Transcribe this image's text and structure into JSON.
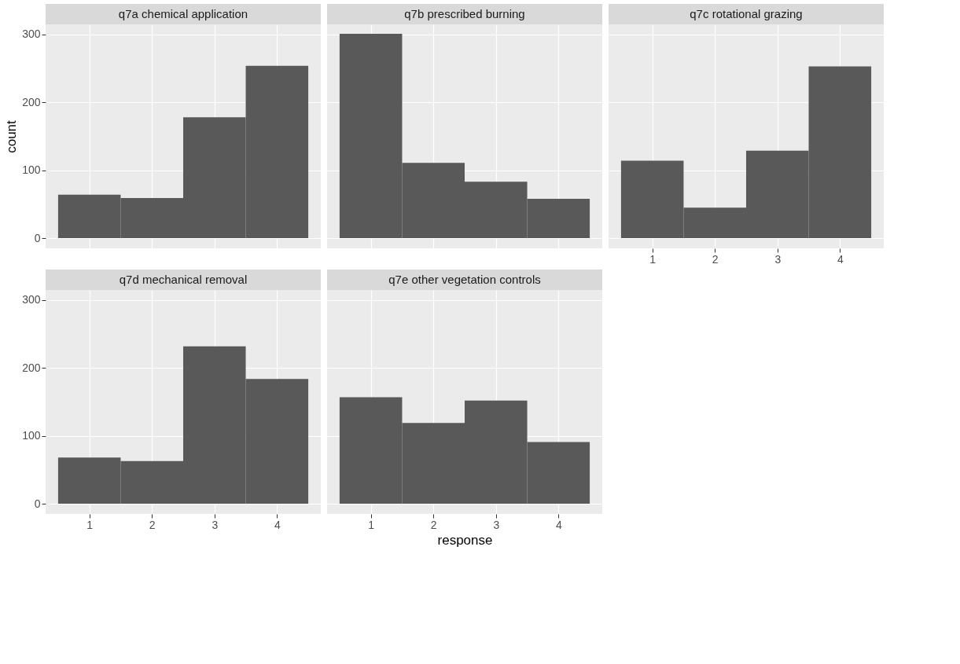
{
  "chart_data": [
    {
      "type": "histogram",
      "title": "q7a chemical application",
      "ylabel": "count",
      "bins": [
        0.5,
        1.5,
        2.5,
        3.5,
        4.5
      ],
      "values": [
        64,
        59,
        178,
        254
      ],
      "color": "#595959",
      "xlim": [
        0.3,
        4.7
      ],
      "xticks": [
        1,
        2,
        3,
        4
      ],
      "ylim": [
        -15,
        315
      ],
      "yticks": [
        0,
        100,
        200,
        300
      ],
      "grid": true,
      "tick_labels": "y"
    },
    {
      "type": "histogram",
      "title": "q7b prescribed burning",
      "bins": [
        0.5,
        1.5,
        2.5,
        3.5,
        4.5
      ],
      "values": [
        301,
        111,
        83,
        58
      ],
      "color": "#595959",
      "xlim": [
        0.3,
        4.7
      ],
      "xticks": [
        1,
        2,
        3,
        4
      ],
      "ylim": [
        -15,
        315
      ],
      "yticks": [
        0,
        100,
        200,
        300
      ],
      "grid": true,
      "tick_labels": false
    },
    {
      "type": "histogram",
      "title": "q7c rotational grazing",
      "bins": [
        0.5,
        1.5,
        2.5,
        3.5,
        4.5
      ],
      "values": [
        114,
        45,
        129,
        253
      ],
      "color": "#595959",
      "xlim": [
        0.3,
        4.7
      ],
      "xticks": [
        1,
        2,
        3,
        4
      ],
      "ylim": [
        -15,
        315
      ],
      "yticks": [
        0,
        100,
        200,
        300
      ],
      "grid": true,
      "tick_labels": "x"
    },
    {
      "type": "histogram",
      "title": "q7d mechanical removal",
      "bins": [
        0.5,
        1.5,
        2.5,
        3.5,
        4.5
      ],
      "values": [
        68,
        63,
        232,
        184
      ],
      "color": "#595959",
      "xlim": [
        0.3,
        4.7
      ],
      "xticks": [
        1,
        2,
        3,
        4
      ],
      "ylim": [
        -15,
        315
      ],
      "yticks": [
        0,
        100,
        200,
        300
      ],
      "grid": true
    },
    {
      "type": "histogram",
      "title": "q7e other vegetation controls",
      "xlabel": "response",
      "bins": [
        0.5,
        1.5,
        2.5,
        3.5,
        4.5
      ],
      "values": [
        157,
        119,
        152,
        91
      ],
      "color": "#595959",
      "xlim": [
        0.3,
        4.7
      ],
      "xticks": [
        1,
        2,
        3,
        4
      ],
      "ylim": [
        -15,
        315
      ],
      "yticks": [
        0,
        100,
        200,
        300
      ],
      "grid": true,
      "tick_labels": "x"
    }
  ]
}
